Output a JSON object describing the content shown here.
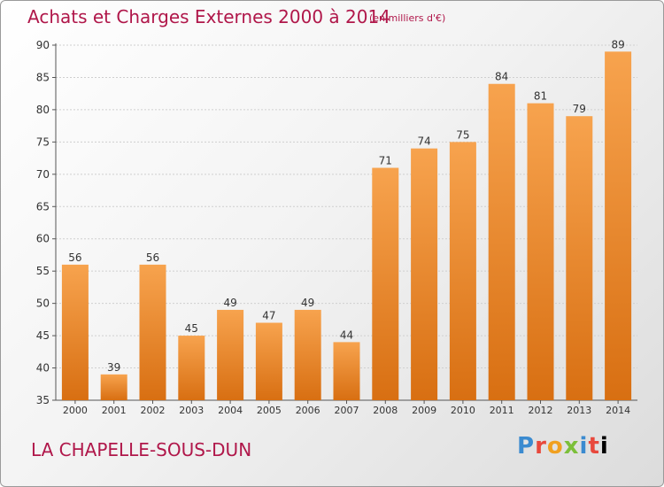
{
  "header": {
    "title": "Achats et Charges Externes 2000 à 2014",
    "subtitle": "(en milliers d'€)"
  },
  "footer": {
    "location": "LA CHAPELLE-SOUS-DUN",
    "brand": "Proxiti",
    "brand_letters": [
      "P",
      "r",
      "o",
      "x",
      "i",
      "t",
      "i"
    ]
  },
  "colors": {
    "bar_light": "#f7a34e",
    "bar_dark": "#d86f12",
    "title": "#b0174a",
    "grid": "#cfcfcf"
  },
  "chart_data": {
    "type": "bar",
    "categories": [
      "2000",
      "2001",
      "2002",
      "2003",
      "2004",
      "2005",
      "2006",
      "2007",
      "2008",
      "2009",
      "2010",
      "2011",
      "2012",
      "2013",
      "2014"
    ],
    "values": [
      56,
      39,
      56,
      45,
      49,
      47,
      49,
      44,
      71,
      74,
      75,
      84,
      81,
      79,
      89
    ],
    "ylim": [
      35,
      90
    ],
    "yticks": [
      35,
      40,
      45,
      50,
      55,
      60,
      65,
      70,
      75,
      80,
      85,
      90
    ],
    "grid": true
  }
}
